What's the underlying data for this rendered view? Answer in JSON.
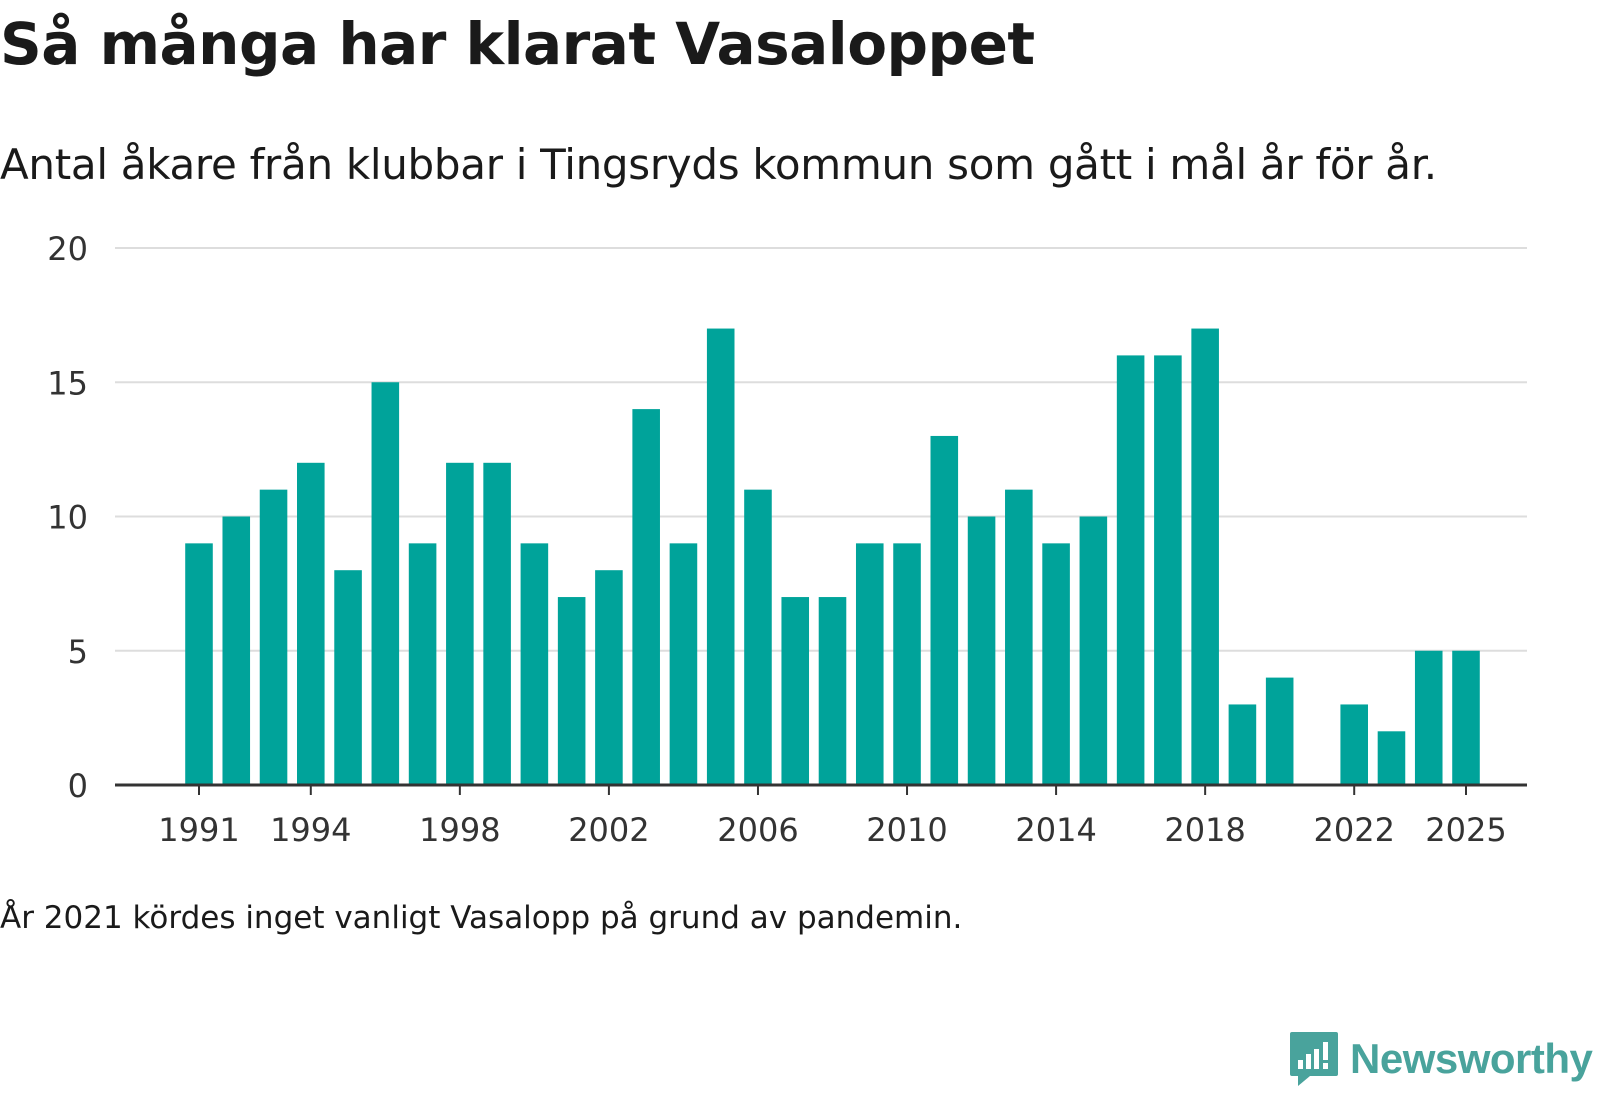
{
  "chart_data": {
    "type": "bar",
    "title": "Så många har klarat Vasaloppet",
    "subtitle": "Antal åkare från klubbar i Tingsryds kommun som gått i mål år för år.",
    "xlabel": "",
    "ylabel": "",
    "ylim": [
      0,
      20
    ],
    "yticks": [
      0,
      5,
      10,
      15,
      20
    ],
    "xtick_labels": [
      "1991",
      "1994",
      "1998",
      "2002",
      "2006",
      "2010",
      "2014",
      "2018",
      "2022",
      "2025"
    ],
    "grid": true,
    "bar_color": "#00a39a",
    "data": [
      {
        "year": 1991,
        "value": 9
      },
      {
        "year": 1992,
        "value": 10
      },
      {
        "year": 1993,
        "value": 11
      },
      {
        "year": 1994,
        "value": 12
      },
      {
        "year": 1995,
        "value": 8
      },
      {
        "year": 1996,
        "value": 15
      },
      {
        "year": 1997,
        "value": 9
      },
      {
        "year": 1998,
        "value": 12
      },
      {
        "year": 1999,
        "value": 12
      },
      {
        "year": 2000,
        "value": 9
      },
      {
        "year": 2001,
        "value": 7
      },
      {
        "year": 2002,
        "value": 8
      },
      {
        "year": 2003,
        "value": 14
      },
      {
        "year": 2004,
        "value": 9
      },
      {
        "year": 2005,
        "value": 17
      },
      {
        "year": 2006,
        "value": 11
      },
      {
        "year": 2007,
        "value": 7
      },
      {
        "year": 2008,
        "value": 7
      },
      {
        "year": 2009,
        "value": 9
      },
      {
        "year": 2010,
        "value": 9
      },
      {
        "year": 2011,
        "value": 13
      },
      {
        "year": 2012,
        "value": 10
      },
      {
        "year": 2013,
        "value": 11
      },
      {
        "year": 2014,
        "value": 9
      },
      {
        "year": 2015,
        "value": 10
      },
      {
        "year": 2016,
        "value": 16
      },
      {
        "year": 2017,
        "value": 16
      },
      {
        "year": 2018,
        "value": 17
      },
      {
        "year": 2019,
        "value": 3
      },
      {
        "year": 2020,
        "value": 4
      },
      {
        "year": 2022,
        "value": 3
      },
      {
        "year": 2023,
        "value": 2
      },
      {
        "year": 2024,
        "value": 5
      },
      {
        "year": 2025,
        "value": 5
      }
    ],
    "note": "År 2021 kördes inget vanligt Vasalopp på grund av pandemin."
  },
  "branding": {
    "name": "Newsworthy",
    "color": "#49a39c",
    "icon": "newsworthy-logo-icon"
  }
}
